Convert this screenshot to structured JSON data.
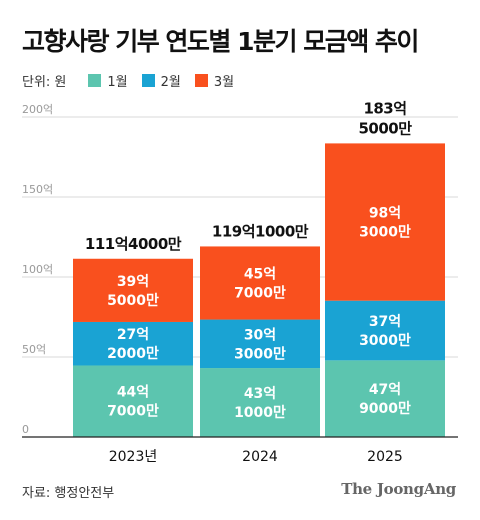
{
  "title": "고향사랑 기부 연도별 1분기 모금액 추이",
  "legend": {
    "unit": "단위: 원",
    "items": [
      {
        "label": "1월",
        "color": "#5cc5af"
      },
      {
        "label": "2월",
        "color": "#1aa3d3"
      },
      {
        "label": "3월",
        "color": "#f9501e"
      }
    ]
  },
  "chart_data": {
    "type": "bar",
    "stacked": true,
    "categories": [
      "2023년",
      "2024",
      "2025"
    ],
    "ylim": [
      0,
      200
    ],
    "yticks": [
      0,
      50,
      100,
      150,
      200
    ],
    "ytick_labels": [
      "0",
      "50억",
      "100억",
      "150억",
      "200억"
    ],
    "grid": true,
    "series": [
      {
        "name": "1월",
        "color": "#5cc5af",
        "values": [
          44.7,
          43.1,
          47.9
        ],
        "labels": [
          [
            "44억",
            "7000만"
          ],
          [
            "43억",
            "1000만"
          ],
          [
            "47억",
            "9000만"
          ]
        ]
      },
      {
        "name": "2월",
        "color": "#1aa3d3",
        "values": [
          27.2,
          30.3,
          37.3
        ],
        "labels": [
          [
            "27억",
            "2000만"
          ],
          [
            "30억",
            "3000만"
          ],
          [
            "37억",
            "3000만"
          ]
        ]
      },
      {
        "name": "3월",
        "color": "#f9501e",
        "values": [
          39.5,
          45.7,
          98.3
        ],
        "labels": [
          [
            "39억",
            "5000만"
          ],
          [
            "45억",
            "7000만"
          ],
          [
            "98억",
            "3000만"
          ]
        ]
      }
    ],
    "totals": [
      [
        "111억4000만"
      ],
      [
        "119억1000만"
      ],
      [
        "183억",
        "5000만"
      ]
    ]
  },
  "source": "자료: 행정안전부",
  "brand": "The JoongAng"
}
